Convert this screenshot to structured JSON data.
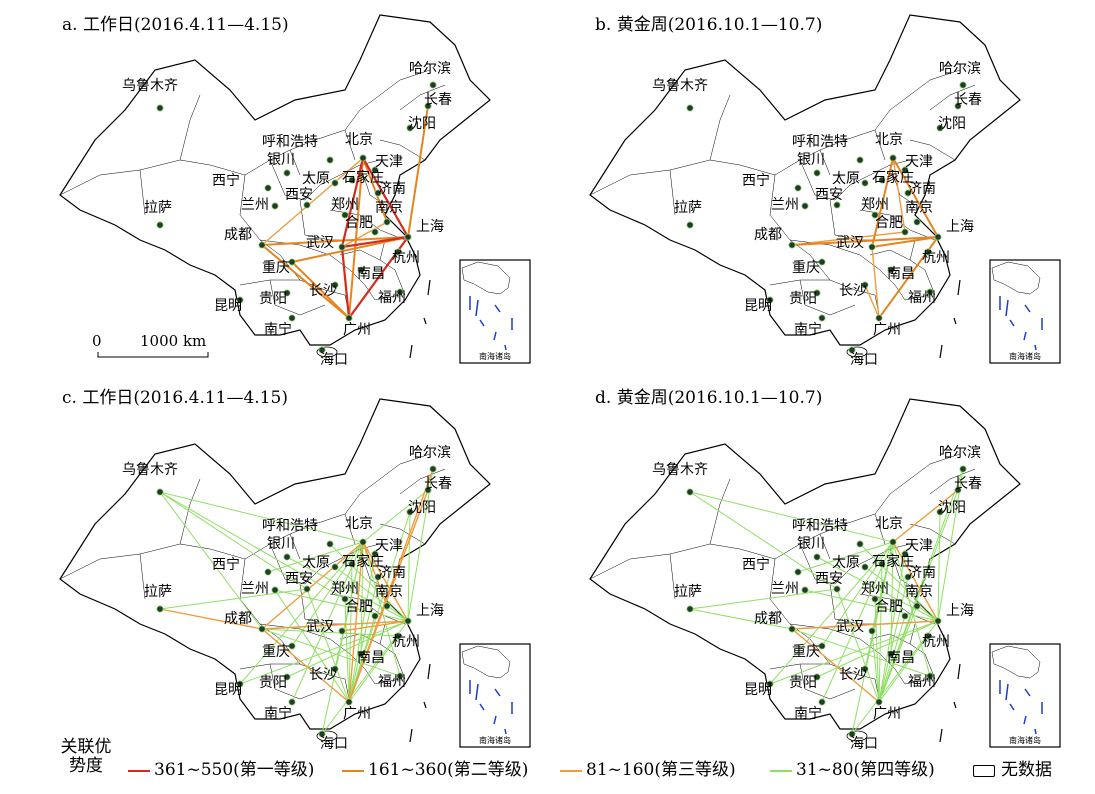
{
  "panels": [
    {
      "title": "a. 工作日(2016.4.11—4.15)",
      "links": [
        {
          "from": "北京",
          "to": "上海",
          "level": 1
        },
        {
          "from": "北京",
          "to": "武汉",
          "level": 1
        },
        {
          "from": "上海",
          "to": "广州",
          "level": 1
        },
        {
          "from": "武汉",
          "to": "广州",
          "level": 1
        },
        {
          "from": "武汉",
          "to": "上海",
          "level": 1
        },
        {
          "from": "成都",
          "to": "上海",
          "level": 2
        },
        {
          "from": "成都",
          "to": "广州",
          "level": 2
        },
        {
          "from": "重庆",
          "to": "上海",
          "level": 2
        },
        {
          "from": "重庆",
          "to": "广州",
          "level": 2
        },
        {
          "from": "长春",
          "to": "上海",
          "level": 2
        },
        {
          "from": "北京",
          "to": "广州",
          "level": 2
        },
        {
          "from": "北京",
          "to": "南京",
          "level": 2
        },
        {
          "from": "成都",
          "to": "北京",
          "level": 3
        },
        {
          "from": "武汉",
          "to": "南京",
          "level": 3
        }
      ]
    },
    {
      "title": "b. 黄金周(2016.10.1—10.7)",
      "links": [
        {
          "from": "北京",
          "to": "上海",
          "level": 2
        },
        {
          "from": "成都",
          "to": "上海",
          "level": 2
        },
        {
          "from": "北京",
          "to": "武汉",
          "level": 2
        },
        {
          "from": "上海",
          "to": "广州",
          "level": 2
        },
        {
          "from": "武汉",
          "to": "上海",
          "level": 2
        },
        {
          "from": "长沙",
          "to": "广州",
          "level": 3
        },
        {
          "from": "武汉",
          "to": "广州",
          "level": 3
        },
        {
          "from": "北京",
          "to": "合肥",
          "level": 3
        },
        {
          "from": "成都",
          "to": "合肥",
          "level": 3
        }
      ]
    },
    {
      "title": "c. 工作日(2016.4.11—4.15)",
      "links": [
        {
          "from": "北京",
          "to": "上海",
          "level": 3
        },
        {
          "from": "成都",
          "to": "上海",
          "level": 3
        },
        {
          "from": "拉萨",
          "to": "成都",
          "level": 3
        },
        {
          "from": "广州",
          "to": "北京",
          "level": 3
        },
        {
          "from": "长春",
          "to": "广州",
          "level": 3
        },
        {
          "from": "哈尔滨",
          "to": "广州",
          "level": 3
        },
        {
          "from": "成都",
          "to": "广州",
          "level": 3
        },
        {
          "from": "武汉",
          "to": "上海",
          "level": 3
        },
        {
          "from": "北京",
          "to": "南京",
          "level": 3
        },
        {
          "from": "成都",
          "to": "北京",
          "level": 3
        },
        {
          "from": "乌鲁木齐",
          "to": "北京",
          "level": 4
        },
        {
          "from": "乌鲁木齐",
          "to": "西安",
          "level": 4
        },
        {
          "from": "乌鲁木齐",
          "to": "成都",
          "level": 4
        },
        {
          "from": "乌鲁木齐",
          "to": "郑州",
          "level": 4
        },
        {
          "from": "拉萨",
          "to": "西安",
          "level": 4
        },
        {
          "from": "西宁",
          "to": "北京",
          "level": 4
        },
        {
          "from": "兰州",
          "to": "上海",
          "level": 4
        },
        {
          "from": "昆明",
          "to": "上海",
          "level": 4
        },
        {
          "from": "昆明",
          "to": "北京",
          "level": 4
        },
        {
          "from": "贵阳",
          "to": "上海",
          "level": 4
        },
        {
          "from": "南宁",
          "to": "北京",
          "level": 4
        },
        {
          "from": "海口",
          "to": "北京",
          "level": 4
        },
        {
          "from": "海口",
          "to": "上海",
          "level": 4
        },
        {
          "from": "福州",
          "to": "北京",
          "level": 4
        },
        {
          "from": "福州",
          "to": "成都",
          "level": 4
        },
        {
          "from": "沈阳",
          "to": "上海",
          "level": 4
        },
        {
          "from": "哈尔滨",
          "to": "上海",
          "level": 4
        },
        {
          "from": "长春",
          "to": "北京",
          "level": 4
        },
        {
          "from": "天津",
          "to": "广州",
          "level": 4
        },
        {
          "from": "济南",
          "to": "广州",
          "level": 4
        },
        {
          "from": "石家庄",
          "to": "广州",
          "level": 4
        },
        {
          "from": "郑州",
          "to": "广州",
          "level": 4
        },
        {
          "from": "太原",
          "to": "上海",
          "level": 4
        },
        {
          "from": "呼和浩特",
          "to": "上海",
          "level": 4
        },
        {
          "from": "银川",
          "to": "上海",
          "level": 4
        },
        {
          "from": "西安",
          "to": "广州",
          "level": 4
        },
        {
          "from": "重庆",
          "to": "北京",
          "level": 4
        },
        {
          "from": "长沙",
          "to": "北京",
          "level": 4
        },
        {
          "from": "南昌",
          "to": "北京",
          "level": 4
        },
        {
          "from": "杭州",
          "to": "广州",
          "level": 4
        },
        {
          "from": "合肥",
          "to": "广州",
          "level": 4
        },
        {
          "from": "杭州",
          "to": "成都",
          "level": 4
        },
        {
          "from": "沈阳",
          "to": "广州",
          "level": 4
        },
        {
          "from": "兰州",
          "to": "广州",
          "level": 4
        }
      ]
    },
    {
      "title": "d. 黄金周(2016.10.1—10.7)",
      "links": [
        {
          "from": "成都",
          "to": "上海",
          "level": 3
        },
        {
          "from": "长春",
          "to": "北京",
          "level": 3
        },
        {
          "from": "成都",
          "to": "广州",
          "level": 3
        },
        {
          "from": "北京",
          "to": "上海",
          "level": 3
        },
        {
          "from": "乌鲁木齐",
          "to": "北京",
          "level": 4
        },
        {
          "from": "乌鲁木齐",
          "to": "西安",
          "level": 4
        },
        {
          "from": "拉萨",
          "to": "成都",
          "level": 4
        },
        {
          "from": "拉萨",
          "to": "西安",
          "level": 4
        },
        {
          "from": "西宁",
          "to": "北京",
          "level": 4
        },
        {
          "from": "兰州",
          "to": "上海",
          "level": 4
        },
        {
          "from": "昆明",
          "to": "上海",
          "level": 4
        },
        {
          "from": "昆明",
          "to": "北京",
          "level": 4
        },
        {
          "from": "贵阳",
          "to": "上海",
          "level": 4
        },
        {
          "from": "南宁",
          "to": "北京",
          "level": 4
        },
        {
          "from": "海口",
          "to": "北京",
          "level": 4
        },
        {
          "from": "海口",
          "to": "上海",
          "level": 4
        },
        {
          "from": "福州",
          "to": "北京",
          "level": 4
        },
        {
          "from": "福州",
          "to": "成都",
          "level": 4
        },
        {
          "from": "沈阳",
          "to": "上海",
          "level": 4
        },
        {
          "from": "哈尔滨",
          "to": "上海",
          "level": 4
        },
        {
          "from": "哈尔滨",
          "to": "广州",
          "level": 4
        },
        {
          "from": "天津",
          "to": "广州",
          "level": 4
        },
        {
          "from": "济南",
          "to": "广州",
          "level": 4
        },
        {
          "from": "石家庄",
          "to": "广州",
          "level": 4
        },
        {
          "from": "郑州",
          "to": "广州",
          "level": 4
        },
        {
          "from": "太原",
          "to": "上海",
          "level": 4
        },
        {
          "from": "呼和浩特",
          "to": "上海",
          "level": 4
        },
        {
          "from": "银川",
          "to": "上海",
          "level": 4
        },
        {
          "from": "西安",
          "to": "广州",
          "level": 4
        },
        {
          "from": "重庆",
          "to": "北京",
          "level": 4
        },
        {
          "from": "长沙",
          "to": "北京",
          "level": 4
        },
        {
          "from": "南昌",
          "to": "北京",
          "level": 4
        },
        {
          "from": "杭州",
          "to": "广州",
          "level": 4
        },
        {
          "from": "合肥",
          "to": "广州",
          "level": 4
        },
        {
          "from": "武汉",
          "to": "北京",
          "level": 4
        },
        {
          "from": "武汉",
          "to": "广州",
          "level": 4
        },
        {
          "from": "南京",
          "to": "广州",
          "level": 4
        },
        {
          "from": "长春",
          "to": "广州",
          "level": 4
        }
      ]
    }
  ],
  "cities": [
    "乌鲁木齐",
    "哈尔滨",
    "长春",
    "沈阳",
    "呼和浩特",
    "北京",
    "天津",
    "银川",
    "太原",
    "石家庄",
    "济南",
    "西宁",
    "兰州",
    "西安",
    "郑州",
    "南京",
    "拉萨",
    "成都",
    "合肥",
    "上海",
    "重庆",
    "武汉",
    "杭州",
    "南昌",
    "长沙",
    "昆明",
    "贵阳",
    "福州",
    "南宁",
    "广州",
    "海口"
  ],
  "scale_bar": {
    "zero": "0",
    "label": "1000 km"
  },
  "inset_label": "南海诸岛",
  "legend": {
    "title": "关联优势度",
    "items": [
      {
        "label": "361~550(第一等级)",
        "color": "#d62a1e"
      },
      {
        "label": "161~360(第二等级)",
        "color": "#e6841d"
      },
      {
        "label": "81~160(第三等级)",
        "color": "#ee9c3c"
      },
      {
        "label": "31~80(第四等级)",
        "color": "#8ee062"
      }
    ],
    "no_data": "无数据"
  }
}
